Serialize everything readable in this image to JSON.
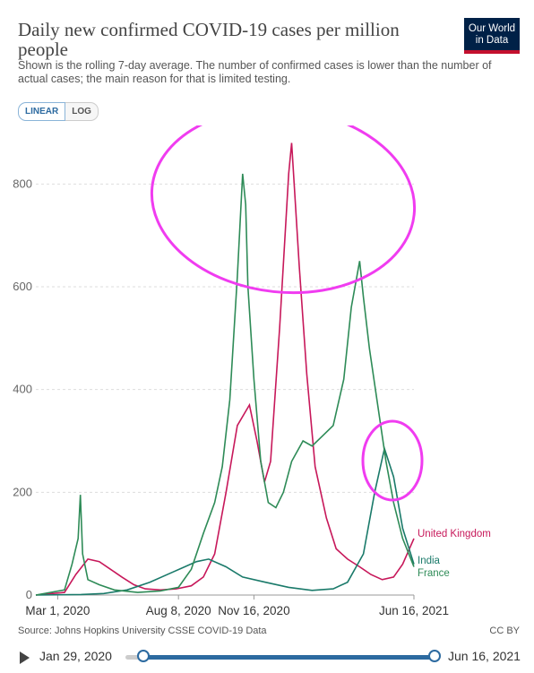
{
  "header": {
    "title": "Daily new confirmed COVID-19 cases per million people",
    "subtitle": "Shown is the rolling 7-day average. The number of confirmed cases is lower than the number of actual cases; the main reason for that is limited testing.",
    "logo": "Our World in Data"
  },
  "controls": {
    "linear_label": "LINEAR",
    "log_label": "LOG"
  },
  "footer": {
    "source": "Source: Johns Hopkins University CSSE COVID-19 Data",
    "license": "CC BY"
  },
  "timeline": {
    "start_label": "Jan 29, 2020",
    "end_label": "Jun 16, 2021"
  },
  "colors": {
    "uk": "#c7185a",
    "india": "#1a7a6a",
    "france": "#2e8b57",
    "annotation": "#f03cf0",
    "accent": "#2c6aa0"
  },
  "chart_data": {
    "type": "line",
    "x_ticks": [
      "Mar 1, 2020",
      "Aug 8, 2020",
      "Nov 16, 2020",
      "Jun 16, 2021"
    ],
    "y_ticks": [
      0,
      200,
      400,
      600,
      800
    ],
    "ylim": [
      0,
      900
    ],
    "xlim": [
      "2020-02-01",
      "2021-06-16"
    ],
    "grid": true,
    "series": [
      {
        "name": "United Kingdom",
        "color": "#c7185a",
        "points": [
          [
            "2020-02-01",
            0
          ],
          [
            "2020-03-10",
            5
          ],
          [
            "2020-03-25",
            40
          ],
          [
            "2020-04-10",
            70
          ],
          [
            "2020-04-25",
            65
          ],
          [
            "2020-05-10",
            50
          ],
          [
            "2020-05-25",
            35
          ],
          [
            "2020-06-10",
            20
          ],
          [
            "2020-06-25",
            12
          ],
          [
            "2020-07-15",
            10
          ],
          [
            "2020-08-05",
            12
          ],
          [
            "2020-08-25",
            18
          ],
          [
            "2020-09-10",
            35
          ],
          [
            "2020-09-25",
            80
          ],
          [
            "2020-10-10",
            200
          ],
          [
            "2020-10-25",
            330
          ],
          [
            "2020-11-10",
            370
          ],
          [
            "2020-11-20",
            300
          ],
          [
            "2020-11-30",
            220
          ],
          [
            "2020-12-08",
            260
          ],
          [
            "2020-12-20",
            520
          ],
          [
            "2021-01-01",
            820
          ],
          [
            "2021-01-05",
            880
          ],
          [
            "2021-01-15",
            640
          ],
          [
            "2021-01-25",
            430
          ],
          [
            "2021-02-05",
            250
          ],
          [
            "2021-02-20",
            150
          ],
          [
            "2021-03-05",
            90
          ],
          [
            "2021-03-20",
            70
          ],
          [
            "2021-04-05",
            55
          ],
          [
            "2021-04-20",
            40
          ],
          [
            "2021-05-05",
            30
          ],
          [
            "2021-05-20",
            35
          ],
          [
            "2021-06-01",
            60
          ],
          [
            "2021-06-16",
            110
          ]
        ]
      },
      {
        "name": "India",
        "color": "#1a7a6a",
        "points": [
          [
            "2020-02-01",
            0
          ],
          [
            "2020-04-01",
            1
          ],
          [
            "2020-05-01",
            3
          ],
          [
            "2020-06-01",
            10
          ],
          [
            "2020-07-01",
            25
          ],
          [
            "2020-08-01",
            45
          ],
          [
            "2020-09-01",
            65
          ],
          [
            "2020-09-17",
            70
          ],
          [
            "2020-10-10",
            55
          ],
          [
            "2020-11-01",
            35
          ],
          [
            "2020-12-01",
            25
          ],
          [
            "2021-01-01",
            15
          ],
          [
            "2021-02-01",
            9
          ],
          [
            "2021-03-01",
            12
          ],
          [
            "2021-03-20",
            25
          ],
          [
            "2021-04-10",
            80
          ],
          [
            "2021-04-25",
            200
          ],
          [
            "2021-05-08",
            285
          ],
          [
            "2021-05-20",
            230
          ],
          [
            "2021-06-01",
            130
          ],
          [
            "2021-06-16",
            60
          ]
        ]
      },
      {
        "name": "France",
        "color": "#2e8b57",
        "points": [
          [
            "2020-02-01",
            0
          ],
          [
            "2020-03-10",
            10
          ],
          [
            "2020-03-20",
            60
          ],
          [
            "2020-03-28",
            110
          ],
          [
            "2020-03-31",
            195
          ],
          [
            "2020-04-03",
            80
          ],
          [
            "2020-04-10",
            30
          ],
          [
            "2020-04-25",
            20
          ],
          [
            "2020-05-15",
            10
          ],
          [
            "2020-06-15",
            5
          ],
          [
            "2020-07-15",
            8
          ],
          [
            "2020-08-08",
            15
          ],
          [
            "2020-08-25",
            50
          ],
          [
            "2020-09-10",
            120
          ],
          [
            "2020-09-25",
            180
          ],
          [
            "2020-10-05",
            250
          ],
          [
            "2020-10-15",
            380
          ],
          [
            "2020-10-25",
            620
          ],
          [
            "2020-11-01",
            820
          ],
          [
            "2020-11-05",
            760
          ],
          [
            "2020-11-08",
            600
          ],
          [
            "2020-11-16",
            420
          ],
          [
            "2020-11-25",
            260
          ],
          [
            "2020-12-05",
            180
          ],
          [
            "2020-12-15",
            170
          ],
          [
            "2020-12-25",
            200
          ],
          [
            "2021-01-05",
            260
          ],
          [
            "2021-01-20",
            300
          ],
          [
            "2021-02-01",
            290
          ],
          [
            "2021-02-15",
            310
          ],
          [
            "2021-03-01",
            330
          ],
          [
            "2021-03-15",
            420
          ],
          [
            "2021-03-25",
            560
          ],
          [
            "2021-04-05",
            650
          ],
          [
            "2021-04-10",
            580
          ],
          [
            "2021-04-18",
            480
          ],
          [
            "2021-04-28",
            380
          ],
          [
            "2021-05-10",
            260
          ],
          [
            "2021-05-20",
            180
          ],
          [
            "2021-06-01",
            110
          ],
          [
            "2021-06-16",
            55
          ]
        ]
      }
    ],
    "annotations": [
      "ellipse-peaks",
      "ellipse-india-peak"
    ]
  }
}
